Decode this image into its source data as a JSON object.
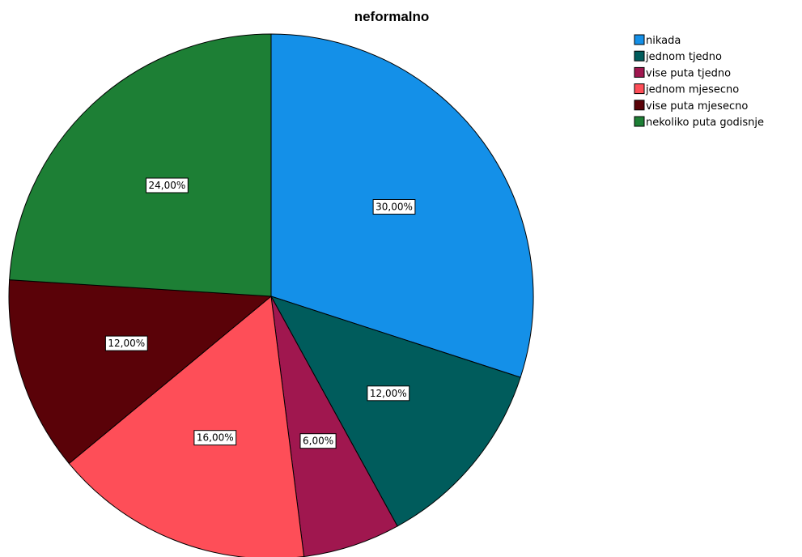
{
  "chart_data": {
    "type": "pie",
    "title": "neformalno",
    "legend_position": "top-right",
    "start_angle_deg": 0,
    "direction": "clockwise",
    "slices": [
      {
        "label": "nikada",
        "value": 30.0,
        "display": "30,00%",
        "color": "#1490E8"
      },
      {
        "label": "jednom tjedno",
        "value": 12.0,
        "display": "12,00%",
        "color": "#005C5C"
      },
      {
        "label": "vise puta tjedno",
        "value": 6.0,
        "display": "6,00%",
        "color": "#A0174F"
      },
      {
        "label": "jednom mjesecno",
        "value": 16.0,
        "display": "16,00%",
        "color": "#FE4E58"
      },
      {
        "label": "vise puta mjesecno",
        "value": 12.0,
        "display": "12,00%",
        "color": "#5A0208"
      },
      {
        "label": "nekoliko puta godisnje",
        "value": 24.0,
        "display": "24,00%",
        "color": "#1D7F35"
      }
    ]
  }
}
